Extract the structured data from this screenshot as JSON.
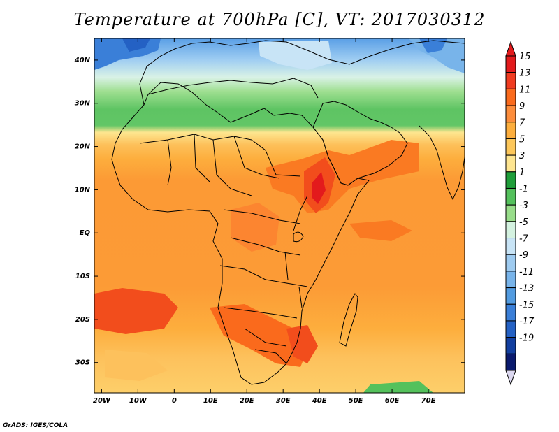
{
  "title": "Temperature at 700hPa [C], VT: 2017030312",
  "credit": "GrADS: IGES/COLA",
  "map": {
    "lon_range": [
      -22,
      80
    ],
    "lat_range": [
      -37,
      45
    ],
    "lat_ticks": [
      {
        "value": 40,
        "label": "40N"
      },
      {
        "value": 30,
        "label": "30N"
      },
      {
        "value": 20,
        "label": "20N"
      },
      {
        "value": 10,
        "label": "10N"
      },
      {
        "value": 0,
        "label": "EQ"
      },
      {
        "value": -10,
        "label": "10S"
      },
      {
        "value": -20,
        "label": "20S"
      },
      {
        "value": -30,
        "label": "30S"
      }
    ],
    "lon_ticks": [
      {
        "value": -20,
        "label": "20W"
      },
      {
        "value": -10,
        "label": "10W"
      },
      {
        "value": 0,
        "label": "0"
      },
      {
        "value": 10,
        "label": "10E"
      },
      {
        "value": 20,
        "label": "20E"
      },
      {
        "value": 30,
        "label": "30E"
      },
      {
        "value": 40,
        "label": "40E"
      },
      {
        "value": 50,
        "label": "50E"
      },
      {
        "value": 60,
        "label": "60E"
      },
      {
        "value": 70,
        "label": "70E"
      }
    ]
  },
  "colorbar": {
    "labels": [
      "15",
      "13",
      "11",
      "9",
      "7",
      "5",
      "3",
      "1",
      "-1",
      "-3",
      "-5",
      "-7",
      "-9",
      "-11",
      "-13",
      "-15",
      "-17",
      "-19"
    ],
    "colors": [
      "#e31a1c",
      "#f03b20",
      "#fa6a1c",
      "#fd8d3c",
      "#fdae3d",
      "#fdc75a",
      "#fee590",
      "#1f9e3a",
      "#54c15c",
      "#98dd8a",
      "#d4f2e0",
      "#c8e4f6",
      "#9ecbf0",
      "#78b4ea",
      "#529be0",
      "#3a7fd8",
      "#2461c4",
      "#123fa0",
      "#0a1a6e"
    ],
    "arrow_top_color": "#e31a1c",
    "arrow_bottom_color": "#dcd8f0"
  }
}
